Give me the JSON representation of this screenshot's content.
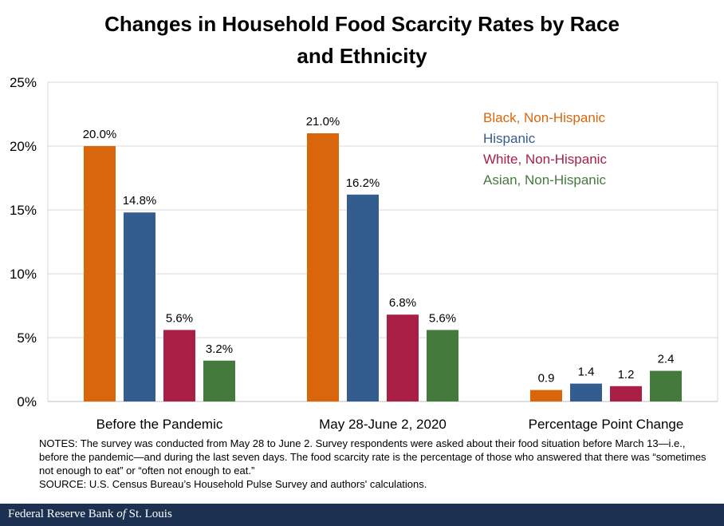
{
  "chart_data": {
    "type": "bar",
    "title": "Changes in Household Food Scarcity Rates by Race and Ethnicity",
    "title_lines": [
      "Changes in Household Food Scarcity Rates by Race",
      "and Ethnicity"
    ],
    "categories": [
      "Before the Pandemic",
      "May 28-June 2, 2020",
      "Percentage Point Change"
    ],
    "series": [
      {
        "name": "Black, Non-Hispanic",
        "color": "#d9660b",
        "values": [
          20.0,
          21.0,
          0.9
        ],
        "labels": [
          "20.0%",
          "21.0%",
          "0.9"
        ]
      },
      {
        "name": "Hispanic",
        "color": "#335d8f",
        "values": [
          14.8,
          16.2,
          1.4
        ],
        "labels": [
          "14.8%",
          "16.2%",
          "1.4"
        ]
      },
      {
        "name": "White, Non-Hispanic",
        "color": "#a91f45",
        "values": [
          5.6,
          6.8,
          1.2
        ],
        "labels": [
          "5.6%",
          "6.8%",
          "1.2"
        ]
      },
      {
        "name": "Asian, Non-Hispanic",
        "color": "#447b3c",
        "values": [
          3.2,
          5.6,
          2.4
        ],
        "labels": [
          "3.2%",
          "5.6%",
          "2.4"
        ]
      }
    ],
    "yticks": [
      "0%",
      "5%",
      "10%",
      "15%",
      "20%",
      "25%"
    ],
    "ylim": [
      0,
      25
    ],
    "xlabel": "",
    "ylabel": "",
    "grid": true,
    "legend_position": "top-right"
  },
  "notes": {
    "text": "NOTES: The survey was conducted from May 28 to June 2. Survey respondents were asked about their food situation before March 13—i.e., before the pandemic—and during the last seven days. The food scarcity rate is the percentage of those who answered that there was “sometimes not enough to eat” or “often not enough to eat.”",
    "source": "SOURCE: U.S. Census Bureau’s Household Pulse Survey and authors' calculations."
  },
  "footer": {
    "brand_prefix": "Federal Reserve Bank ",
    "brand_of": "of",
    "brand_suffix": " St. Louis"
  }
}
